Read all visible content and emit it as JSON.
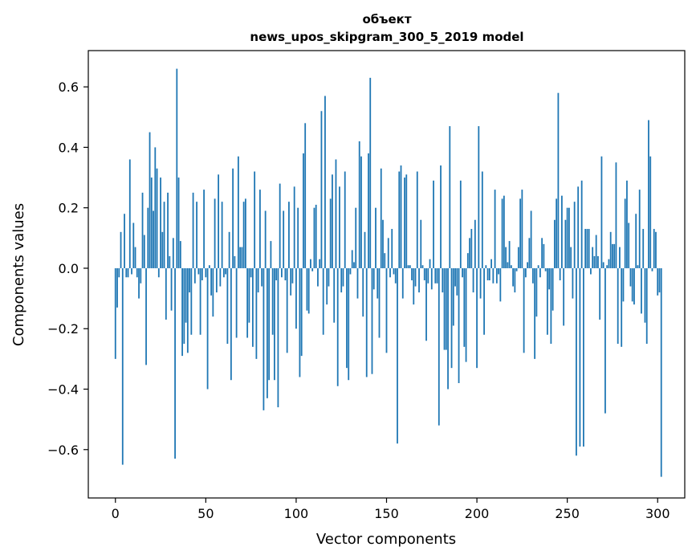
{
  "chart_data": {
    "type": "bar",
    "title": "объект",
    "subtitle": "news_upos_skipgram_300_5_2019 model",
    "xlabel": "Vector components",
    "ylabel": "Components values",
    "xlim": [
      -15,
      315
    ],
    "ylim": [
      -0.76,
      0.72
    ],
    "xticks": [
      0,
      50,
      100,
      150,
      200,
      250,
      300
    ],
    "yticks": [
      -0.6,
      -0.4,
      -0.2,
      0.0,
      0.2,
      0.4,
      0.6
    ],
    "ytick_labels": [
      "−0.6",
      "−0.4",
      "−0.2",
      "0.0",
      "0.2",
      "0.4",
      "0.6"
    ],
    "grid": false,
    "color": "#1f77b4",
    "x_start": 0,
    "values": [
      -0.3,
      -0.13,
      -0.03,
      0.12,
      -0.65,
      0.18,
      -0.03,
      -0.03,
      0.36,
      -0.02,
      0.15,
      0.07,
      -0.03,
      -0.1,
      -0.05,
      0.25,
      0.11,
      -0.32,
      0.2,
      0.45,
      0.3,
      0.19,
      0.4,
      0.33,
      -0.03,
      0.3,
      0.12,
      0.22,
      -0.17,
      0.25,
      0.04,
      -0.14,
      0.1,
      -0.63,
      0.66,
      0.3,
      0.09,
      -0.29,
      -0.25,
      -0.18,
      -0.28,
      -0.08,
      -0.22,
      0.25,
      -0.05,
      0.22,
      -0.02,
      -0.22,
      -0.04,
      0.26,
      -0.03,
      -0.4,
      0.01,
      -0.09,
      -0.16,
      0.23,
      -0.08,
      0.31,
      -0.06,
      0.22,
      -0.03,
      -0.02,
      -0.25,
      0.12,
      -0.37,
      0.33,
      0.04,
      -0.23,
      0.37,
      0.07,
      0.07,
      0.22,
      0.23,
      -0.23,
      -0.18,
      -0.03,
      -0.26,
      0.32,
      -0.3,
      -0.08,
      0.26,
      -0.06,
      -0.47,
      0.19,
      -0.43,
      -0.37,
      0.09,
      -0.22,
      -0.37,
      -0.04,
      -0.46,
      0.28,
      -0.03,
      0.19,
      -0.04,
      -0.28,
      0.22,
      -0.09,
      -0.05,
      0.27,
      -0.2,
      0.2,
      -0.36,
      -0.29,
      0.38,
      0.48,
      -0.14,
      -0.15,
      0.03,
      -0.01,
      0.2,
      0.21,
      -0.06,
      0.03,
      0.52,
      -0.22,
      0.57,
      -0.12,
      -0.06,
      0.23,
      0.31,
      -0.18,
      0.36,
      -0.39,
      0.27,
      -0.08,
      -0.06,
      0.32,
      -0.33,
      -0.37,
      -0.02,
      0.06,
      0.02,
      0.2,
      -0.1,
      0.42,
      0.37,
      -0.16,
      0.12,
      -0.36,
      0.38,
      0.63,
      -0.35,
      -0.07,
      0.2,
      -0.1,
      -0.23,
      0.33,
      0.16,
      0.05,
      -0.28,
      0.1,
      -0.03,
      0.13,
      -0.02,
      -0.05,
      -0.58,
      0.32,
      0.34,
      -0.1,
      0.3,
      0.31,
      0.01,
      0.01,
      -0.04,
      -0.12,
      -0.06,
      0.32,
      -0.08,
      0.16,
      0.01,
      -0.04,
      -0.24,
      -0.05,
      0.03,
      -0.07,
      0.29,
      -0.05,
      -0.05,
      -0.52,
      0.34,
      -0.08,
      -0.27,
      -0.27,
      -0.4,
      0.47,
      -0.33,
      -0.19,
      -0.06,
      -0.09,
      -0.38,
      0.29,
      -0.03,
      -0.26,
      -0.31,
      0.05,
      0.1,
      0.13,
      -0.08,
      0.16,
      -0.33,
      0.47,
      -0.1,
      0.32,
      -0.22,
      0.01,
      -0.04,
      -0.04,
      0.03,
      -0.05,
      0.26,
      -0.05,
      -0.02,
      -0.11,
      0.23,
      0.24,
      0.07,
      0.02,
      0.09,
      0.01,
      -0.06,
      -0.08,
      -0.01,
      0.07,
      0.23,
      0.26,
      -0.28,
      -0.03,
      0.02,
      0.1,
      0.19,
      -0.05,
      -0.3,
      -0.16,
      0.01,
      -0.03,
      0.1,
      0.08,
      -0.01,
      -0.22,
      -0.07,
      -0.25,
      -0.14,
      0.16,
      0.23,
      0.58,
      -0.04,
      0.24,
      -0.19,
      0.16,
      0.2,
      0.2,
      0.07,
      -0.1,
      0.22,
      -0.62,
      0.27,
      -0.59,
      0.29,
      -0.59,
      0.13,
      0.13,
      0.13,
      -0.02,
      0.07,
      0.04,
      0.11,
      0.04,
      -0.17,
      0.37,
      0.02,
      -0.48,
      0.01,
      0.03,
      0.12,
      0.08,
      0.08,
      0.35,
      -0.25,
      0.07,
      -0.26,
      -0.11,
      0.23,
      0.29,
      0.15,
      -0.06,
      -0.11,
      -0.12,
      0.18,
      0.01,
      0.26,
      -0.15,
      0.13,
      -0.18,
      -0.25,
      0.49,
      0.37,
      -0.01,
      0.13,
      0.12,
      -0.09,
      -0.08,
      -0.69
    ]
  }
}
